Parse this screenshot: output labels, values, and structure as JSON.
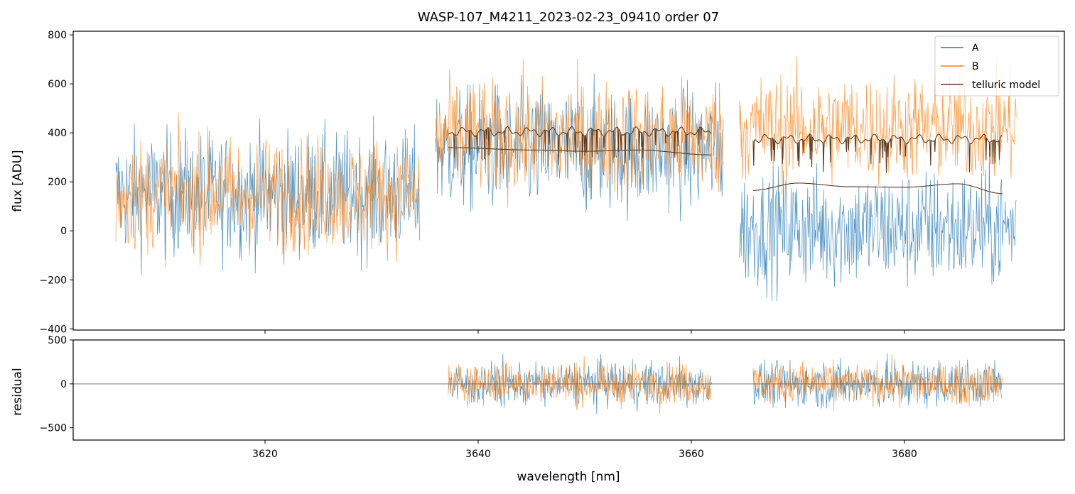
{
  "figure": {
    "title": "WASP-107_M4211_2023-02-23_09410  order 07"
  },
  "chart_data": [
    {
      "id": "flux_panel",
      "type": "line",
      "title": "WASP-107_M4211_2023-02-23_09410  order 07",
      "xlabel": "",
      "ylabel": "flux [ADU]",
      "xlim": [
        3602,
        3695
      ],
      "ylim": [
        -405,
        815
      ],
      "xticks": [
        3620,
        3640,
        3660,
        3680
      ],
      "yticks": [
        -400,
        -200,
        0,
        200,
        400,
        600,
        800
      ],
      "ytick_labels": [
        "−400",
        "−200",
        "0",
        "200",
        "400",
        "600",
        "800"
      ],
      "legend": {
        "location": "top-right",
        "entries": [
          {
            "label": "A",
            "color": "#1f77b4"
          },
          {
            "label": "B",
            "color": "#ff7f0e"
          },
          {
            "label": "telluric model",
            "color": "#5a3a22"
          }
        ]
      },
      "series": [
        {
          "name": "A",
          "color": "#1f77b4",
          "kind": "noisy_spectrum",
          "segments": [
            {
              "x_range": [
                3606,
                3634.5
              ],
              "mean": 150,
              "noise": 230
            },
            {
              "x_range": [
                3636,
                3663
              ],
              "mean": 330,
              "noise": 230
            },
            {
              "x_range": [
                3664.5,
                3690.5
              ],
              "mean": 10,
              "noise": 220
            }
          ]
        },
        {
          "name": "B",
          "color": "#ff7f0e",
          "kind": "noisy_spectrum",
          "segments": [
            {
              "x_range": [
                3606,
                3634.5
              ],
              "mean": 150,
              "noise": 210
            },
            {
              "x_range": [
                3636,
                3663
              ],
              "mean": 380,
              "noise": 210
            },
            {
              "x_range": [
                3664.5,
                3690.5
              ],
              "mean": 420,
              "noise": 200
            }
          ]
        },
        {
          "name": "telluric model",
          "color": "#5a3a22",
          "kind": "model",
          "segments": [
            {
              "x_range": [
                3637.2,
                3661.9
              ],
              "upper_level": 430,
              "continuum": [
                [
                  3637.2,
                  340
                ],
                [
                  3645,
                  330
                ],
                [
                  3650,
                  325
                ],
                [
                  3655,
                  330
                ],
                [
                  3661.9,
                  310
                ]
              ]
            },
            {
              "x_range": [
                3665.8,
                3689.2
              ],
              "upper_level": 400,
              "continuum": [
                [
                  3665.8,
                  165
                ],
                [
                  3670,
                  195
                ],
                [
                  3675,
                  180
                ],
                [
                  3680,
                  178
                ],
                [
                  3685,
                  192
                ],
                [
                  3689.2,
                  152
                ]
              ]
            }
          ]
        }
      ]
    },
    {
      "id": "residual_panel",
      "type": "line",
      "xlabel": "wavelength [nm]",
      "ylabel": "residual",
      "xlim": [
        3602,
        3695
      ],
      "ylim": [
        -640,
        500
      ],
      "xticks": [
        3620,
        3640,
        3660,
        3680
      ],
      "xtick_labels": [
        "3620",
        "3640",
        "3660",
        "3680"
      ],
      "yticks": [
        -500,
        0,
        500
      ],
      "ytick_labels": [
        "−500",
        "0",
        "500"
      ],
      "zero_line": true,
      "series": [
        {
          "name": "A",
          "color": "#1f77b4",
          "kind": "residual_noise",
          "segments": [
            {
              "x_range": [
                3637.2,
                3661.9
              ],
              "noise": 230
            },
            {
              "x_range": [
                3665.8,
                3689.2
              ],
              "noise": 240
            }
          ]
        },
        {
          "name": "B",
          "color": "#ff7f0e",
          "kind": "residual_noise",
          "segments": [
            {
              "x_range": [
                3637.2,
                3661.9
              ],
              "noise": 210
            },
            {
              "x_range": [
                3665.8,
                3689.2
              ],
              "noise": 210
            }
          ]
        }
      ]
    }
  ]
}
